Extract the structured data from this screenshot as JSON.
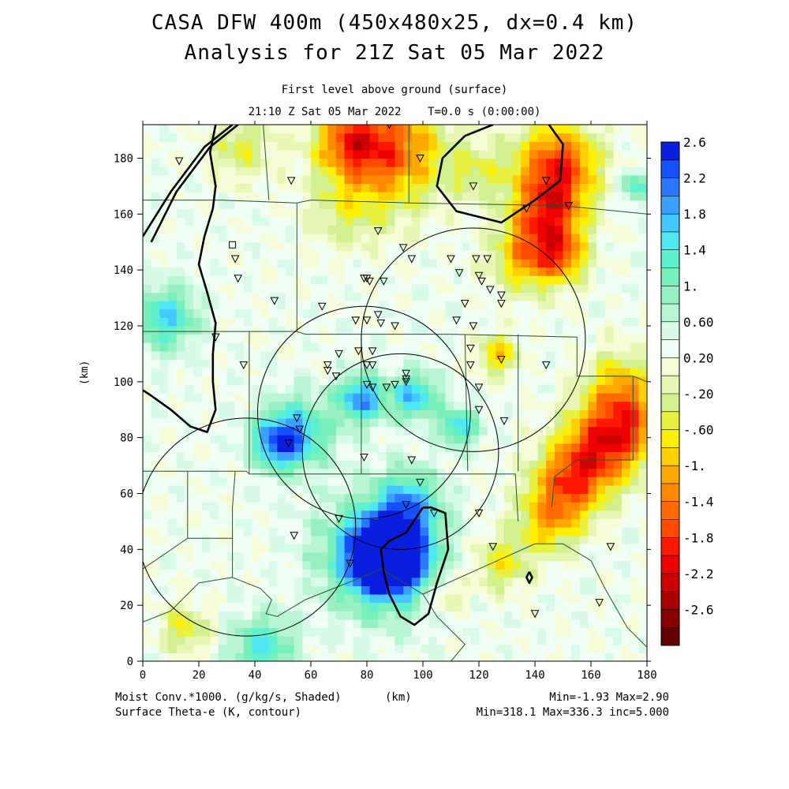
{
  "header": {
    "title_line1": "CASA DFW 400m (450x480x25, dx=0.4 km)",
    "title_line2": "Analysis for 21Z Sat 05 Mar 2022",
    "subtitle_line1": "First level above ground (surface)",
    "subtitle_line2": "21:10 Z Sat 05 Mar 2022    T=0.0 s (0:00:00)"
  },
  "footer": {
    "left_line1": "Moist Conv.*1000. (g/kg/s, Shaded)",
    "unit_label": "(km)",
    "left_line2": "Surface Theta-e (K, contour)",
    "right_line1": "Min=-1.93 Max=2.90",
    "right_line2": "Min=318.1 Max=336.3 inc=5.000"
  },
  "colorbar": {
    "labels": [
      "2.6",
      "2.2",
      "1.8",
      "1.4",
      "1.",
      "0.60",
      "0.20",
      "-.20",
      "-.60",
      "-1.",
      "-1.4",
      "-1.8",
      "-2.2",
      "-2.6"
    ],
    "colors": [
      "#0a1ee0",
      "#1450ff",
      "#2a78ff",
      "#3ba0ff",
      "#45c8ff",
      "#4fe8f0",
      "#5ff0d0",
      "#78f0bc",
      "#98f0c0",
      "#b8f5d2",
      "#d8fbe8",
      "#f0fff4",
      "#f6fcd8",
      "#e6f7b4",
      "#d2f090",
      "#e8f040",
      "#fff000",
      "#ffd000",
      "#ffa800",
      "#ff8a00",
      "#ff6a00",
      "#ff4a00",
      "#ff1800",
      "#ee0000",
      "#cc0000",
      "#a80000",
      "#860000",
      "#640000"
    ],
    "min": -2.6,
    "max": 2.6
  },
  "chart_data": {
    "type": "heatmap",
    "title": "CASA DFW 400m (450x480x25, dx=0.4 km)",
    "xlabel": "(km)",
    "ylabel": "(km)",
    "xlim": [
      0,
      180
    ],
    "ylim": [
      0,
      192
    ],
    "x_ticks": [
      0,
      20,
      40,
      60,
      80,
      100,
      120,
      140,
      160,
      180
    ],
    "y_ticks": [
      0,
      20,
      40,
      60,
      80,
      100,
      120,
      140,
      160,
      180
    ],
    "shaded_field": "Moist Conv.*1000. (g/kg/s, Shaded)",
    "shaded_min": -1.93,
    "shaded_max": 2.9,
    "contour_field": "Surface Theta-e (K, contour)",
    "contour_min": 318.1,
    "contour_max": 336.3,
    "contour_inc": 5.0,
    "blobs": [
      {
        "x": 88,
        "y": 38,
        "r": 8,
        "v": 2.6
      },
      {
        "x": 85,
        "y": 38,
        "r": 14,
        "v": 1.4
      },
      {
        "x": 78,
        "y": 94,
        "r": 6,
        "v": 1.3
      },
      {
        "x": 97,
        "y": 95,
        "r": 6,
        "v": 1.1
      },
      {
        "x": 113,
        "y": 84,
        "r": 5,
        "v": 1.0
      },
      {
        "x": 55,
        "y": 82,
        "r": 9,
        "v": 1.0
      },
      {
        "x": 48,
        "y": 78,
        "r": 6,
        "v": 1.1
      },
      {
        "x": 95,
        "y": 57,
        "r": 8,
        "v": 0.9
      },
      {
        "x": 43,
        "y": 5,
        "r": 8,
        "v": 0.9
      },
      {
        "x": 8,
        "y": 123,
        "r": 8,
        "v": 1.0
      },
      {
        "x": 176,
        "y": 170,
        "r": 4,
        "v": 0.8
      },
      {
        "x": 87,
        "y": 183,
        "r": 14,
        "v": -1.5
      },
      {
        "x": 73,
        "y": 186,
        "r": 8,
        "v": -0.9
      },
      {
        "x": 148,
        "y": 178,
        "r": 10,
        "v": -1.6
      },
      {
        "x": 145,
        "y": 160,
        "r": 9,
        "v": -1.4
      },
      {
        "x": 138,
        "y": 145,
        "r": 9,
        "v": -1.1
      },
      {
        "x": 150,
        "y": 145,
        "r": 6,
        "v": -0.9
      },
      {
        "x": 172,
        "y": 85,
        "r": 10,
        "v": -1.3
      },
      {
        "x": 162,
        "y": 75,
        "r": 10,
        "v": -1.1
      },
      {
        "x": 152,
        "y": 64,
        "r": 9,
        "v": -1.2
      },
      {
        "x": 145,
        "y": 50,
        "r": 8,
        "v": -0.9
      },
      {
        "x": 128,
        "y": 35,
        "r": 7,
        "v": -0.7
      },
      {
        "x": 35,
        "y": 184,
        "r": 8,
        "v": -0.6
      },
      {
        "x": 15,
        "y": 12,
        "r": 6,
        "v": -0.7
      },
      {
        "x": 127,
        "y": 110,
        "r": 5,
        "v": -0.9
      },
      {
        "x": 108,
        "y": 24,
        "r": 5,
        "v": -0.5
      },
      {
        "x": 72,
        "y": 160,
        "r": 9,
        "v": -0.4
      },
      {
        "x": 120,
        "y": 175,
        "r": 7,
        "v": -0.5
      },
      {
        "x": 170,
        "y": 100,
        "r": 8,
        "v": -0.7
      }
    ],
    "theta_e_contours": [
      [
        [
          3,
          150
        ],
        [
          12,
          168
        ],
        [
          24,
          184
        ],
        [
          34,
          192
        ]
      ],
      [
        [
          0,
          152
        ],
        [
          10,
          168
        ],
        [
          22,
          184
        ],
        [
          32,
          192
        ]
      ],
      [
        [
          26,
          192
        ],
        [
          24,
          182
        ],
        [
          26,
          170
        ],
        [
          25,
          162
        ],
        [
          22,
          152
        ],
        [
          20,
          142
        ],
        [
          23,
          132
        ],
        [
          26,
          121
        ],
        [
          25,
          110
        ],
        [
          25,
          100
        ],
        [
          26,
          90
        ],
        [
          23,
          82
        ],
        [
          17,
          84
        ],
        [
          10,
          90
        ],
        [
          3,
          95
        ],
        [
          0,
          97
        ]
      ],
      [
        [
          145,
          192
        ],
        [
          150,
          185
        ],
        [
          149,
          172
        ],
        [
          140,
          165
        ],
        [
          128,
          157
        ],
        [
          112,
          161
        ],
        [
          105,
          170
        ],
        [
          107,
          180
        ],
        [
          115,
          188
        ],
        [
          125,
          192
        ]
      ],
      [
        [
          100,
          55
        ],
        [
          94,
          46
        ],
        [
          88,
          43
        ],
        [
          85,
          40
        ],
        [
          86,
          32
        ],
        [
          88,
          24
        ],
        [
          92,
          16
        ],
        [
          97,
          13
        ],
        [
          102,
          17
        ],
        [
          105,
          28
        ],
        [
          109,
          40
        ],
        [
          108,
          53
        ],
        [
          103,
          55
        ],
        [
          100,
          55
        ]
      ],
      [
        [
          138,
          32
        ],
        [
          137,
          30
        ],
        [
          138,
          28
        ],
        [
          139,
          30
        ],
        [
          138,
          32
        ]
      ]
    ],
    "radar_circles": [
      {
        "x": 92,
        "y": 75,
        "r": 35
      },
      {
        "x": 37,
        "y": 48,
        "r": 39
      },
      {
        "x": 79,
        "y": 89,
        "r": 38
      },
      {
        "x": 118,
        "y": 115,
        "r": 40
      }
    ],
    "stations": [
      [
        13,
        179
      ],
      [
        53,
        172
      ],
      [
        88,
        192
      ],
      [
        99,
        180
      ],
      [
        118,
        170
      ],
      [
        137,
        162
      ],
      [
        144,
        172
      ],
      [
        152,
        163
      ],
      [
        84,
        154
      ],
      [
        93,
        148
      ],
      [
        96,
        144
      ],
      [
        80,
        137
      ],
      [
        81,
        136
      ],
      [
        86,
        136
      ],
      [
        79,
        137
      ],
      [
        110,
        144
      ],
      [
        113,
        139
      ],
      [
        120,
        138
      ],
      [
        119,
        144
      ],
      [
        123,
        144
      ],
      [
        121,
        136
      ],
      [
        124,
        133
      ],
      [
        128,
        131
      ],
      [
        128,
        128
      ],
      [
        115,
        128
      ],
      [
        76,
        122
      ],
      [
        80,
        122
      ],
      [
        84,
        124
      ],
      [
        85,
        121
      ],
      [
        90,
        120
      ],
      [
        118,
        120
      ],
      [
        112,
        122
      ],
      [
        64,
        127
      ],
      [
        47,
        129
      ],
      [
        33,
        144
      ],
      [
        34,
        137
      ],
      [
        26,
        116
      ],
      [
        36,
        106
      ],
      [
        70,
        110
      ],
      [
        77,
        111
      ],
      [
        82,
        111
      ],
      [
        66,
        106
      ],
      [
        66,
        104
      ],
      [
        69,
        102
      ],
      [
        80,
        106
      ],
      [
        82,
        106
      ],
      [
        80,
        99
      ],
      [
        82,
        98
      ],
      [
        87,
        98
      ],
      [
        90,
        99
      ],
      [
        94,
        103
      ],
      [
        94,
        101
      ],
      [
        94,
        100
      ],
      [
        120,
        98
      ],
      [
        120,
        90
      ],
      [
        117,
        106
      ],
      [
        117,
        112
      ],
      [
        128,
        108
      ],
      [
        144,
        106
      ],
      [
        129,
        86
      ],
      [
        55,
        87
      ],
      [
        56,
        83
      ],
      [
        52,
        78
      ],
      [
        79,
        73
      ],
      [
        96,
        72
      ],
      [
        99,
        64
      ],
      [
        94,
        56
      ],
      [
        104,
        53
      ],
      [
        120,
        53
      ],
      [
        125,
        41
      ],
      [
        140,
        17
      ],
      [
        163,
        21
      ],
      [
        167,
        41
      ],
      [
        70,
        51
      ],
      [
        54,
        45
      ],
      [
        74,
        35
      ]
    ],
    "square_station": [
      32,
      149
    ],
    "county_lines": [
      [
        [
          0,
          165
        ],
        [
          28,
          165
        ],
        [
          55,
          164
        ]
      ],
      [
        [
          55,
          164
        ],
        [
          55,
          118
        ],
        [
          58,
          117
        ],
        [
          110,
          117
        ],
        [
          155,
          116
        ],
        [
          155,
          102
        ],
        [
          175,
          102
        ],
        [
          180,
          100
        ]
      ],
      [
        [
          0,
          118
        ],
        [
          55,
          118
        ]
      ],
      [
        [
          0,
          68
        ],
        [
          5,
          68
        ],
        [
          37,
          68
        ],
        [
          38,
          67
        ],
        [
          78,
          67
        ]
      ],
      [
        [
          78,
          67
        ],
        [
          78,
          117
        ]
      ],
      [
        [
          38,
          118
        ],
        [
          38,
          67
        ]
      ],
      [
        [
          78,
          67
        ],
        [
          115,
          67
        ],
        [
          133,
          67
        ],
        [
          134,
          50
        ]
      ],
      [
        [
          115,
          117
        ],
        [
          116,
          68
        ]
      ],
      [
        [
          134,
          117
        ],
        [
          134,
          68
        ]
      ],
      [
        [
          0,
          33
        ],
        [
          16,
          44
        ],
        [
          32,
          44
        ],
        [
          32,
          30
        ],
        [
          42,
          26
        ],
        [
          46,
          22
        ],
        [
          44,
          17
        ],
        [
          48,
          16
        ],
        [
          58,
          22
        ],
        [
          78,
          30
        ],
        [
          85,
          33
        ]
      ],
      [
        [
          85,
          33
        ],
        [
          100,
          24
        ],
        [
          120,
          33
        ],
        [
          140,
          42
        ],
        [
          150,
          42
        ],
        [
          160,
          36
        ],
        [
          165,
          26
        ],
        [
          173,
          12
        ],
        [
          180,
          5
        ]
      ],
      [
        [
          100,
          24
        ],
        [
          105,
          16
        ],
        [
          110,
          11
        ],
        [
          115,
          6
        ],
        [
          110,
          0
        ]
      ],
      [
        [
          32,
          44
        ],
        [
          32,
          55
        ],
        [
          33,
          68
        ]
      ],
      [
        [
          16,
          44
        ],
        [
          16,
          68
        ]
      ],
      [
        [
          0,
          14
        ],
        [
          10,
          18
        ],
        [
          20,
          28
        ],
        [
          32,
          30
        ]
      ],
      [
        [
          146,
          55
        ],
        [
          147,
          66
        ],
        [
          155,
          72
        ],
        [
          175,
          72
        ],
        [
          175,
          102
        ]
      ],
      [
        [
          43,
          192
        ],
        [
          45,
          165
        ]
      ],
      [
        [
          55,
          164
        ],
        [
          60,
          165
        ],
        [
          95,
          164
        ],
        [
          150,
          163
        ],
        [
          180,
          160
        ]
      ],
      [
        [
          95,
          164
        ],
        [
          95,
          192
        ]
      ]
    ]
  }
}
